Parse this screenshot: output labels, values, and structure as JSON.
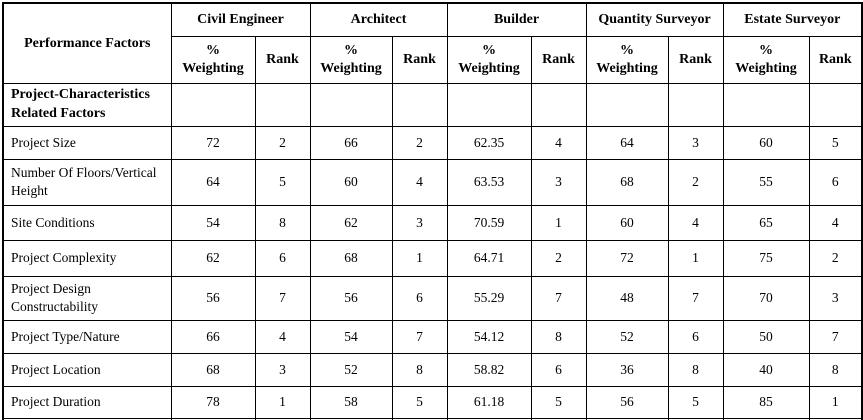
{
  "table": {
    "corner_header": "Performance Factors",
    "groups": [
      {
        "label": "Civil Engineer"
      },
      {
        "label": "Architect"
      },
      {
        "label": "Builder"
      },
      {
        "label": "Quantity Surveyor"
      },
      {
        "label": "Estate Surveyor"
      }
    ],
    "sub_headers": {
      "weighting": "% Weighting",
      "rank": "Rank"
    },
    "section_row": {
      "label": "Project-Characteristics Related Factors"
    },
    "rows": [
      {
        "factor": "Project Size",
        "cells": [
          "72",
          "2",
          "66",
          "2",
          "62.35",
          "4",
          "64",
          "3",
          "60",
          "5"
        ]
      },
      {
        "factor": "Number Of Floors/Vertical Height",
        "cells": [
          "64",
          "5",
          "60",
          "4",
          "63.53",
          "3",
          "68",
          "2",
          "55",
          "6"
        ]
      },
      {
        "factor": "Site Conditions",
        "cells": [
          "54",
          "8",
          "62",
          "3",
          "70.59",
          "1",
          "60",
          "4",
          "65",
          "4"
        ]
      },
      {
        "factor": "Project Complexity",
        "cells": [
          "62",
          "6",
          "68",
          "1",
          "64.71",
          "2",
          "72",
          "1",
          "75",
          "2"
        ]
      },
      {
        "factor": "Project Design Constructability",
        "cells": [
          "56",
          "7",
          "56",
          "6",
          "55.29",
          "7",
          "48",
          "7",
          "70",
          "3"
        ]
      },
      {
        "factor": "Project Type/Nature",
        "cells": [
          "66",
          "4",
          "54",
          "7",
          "54.12",
          "8",
          "52",
          "6",
          "50",
          "7"
        ]
      },
      {
        "factor": "Project Location",
        "cells": [
          "68",
          "3",
          "52",
          "8",
          "58.82",
          "6",
          "36",
          "8",
          "40",
          "8"
        ]
      },
      {
        "factor": "Project Duration",
        "cells": [
          "78",
          "1",
          "58",
          "5",
          "61.18",
          "5",
          "56",
          "5",
          "85",
          "1"
        ]
      }
    ]
  },
  "colors": {
    "border": "#000000",
    "text": "#000000",
    "background": "#ffffff"
  }
}
